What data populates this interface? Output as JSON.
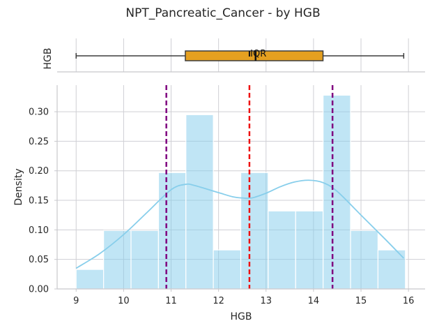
{
  "chart_data": [
    {
      "type": "box",
      "title": "NPT_Pancreatic_Cancer - by HGB",
      "ylabel": "HGB",
      "annotation": "IQR",
      "min": 9.0,
      "q1": 11.3,
      "median": 12.78,
      "q3": 14.2,
      "max": 15.9,
      "mean": 12.65,
      "box_color": "#E5A020",
      "xlim": [
        8.6,
        16.35
      ]
    },
    {
      "type": "bar",
      "subtype": "histogram",
      "xlabel": "HGB",
      "ylabel": "Density",
      "xlim": [
        8.6,
        16.35
      ],
      "ylim": [
        0,
        0.345
      ],
      "xticks": [
        "9",
        "10",
        "11",
        "12",
        "13",
        "14",
        "15",
        "16"
      ],
      "yticks": [
        "0.00",
        "0.05",
        "0.10",
        "0.15",
        "0.20",
        "0.25",
        "0.30"
      ],
      "bins": [
        {
          "x0": 9.0,
          "x1": 9.578,
          "density": 0.033
        },
        {
          "x0": 9.578,
          "x1": 10.156,
          "density": 0.099
        },
        {
          "x0": 10.156,
          "x1": 10.734,
          "density": 0.099
        },
        {
          "x0": 10.734,
          "x1": 11.312,
          "density": 0.197
        },
        {
          "x0": 11.312,
          "x1": 11.89,
          "density": 0.295
        },
        {
          "x0": 11.89,
          "x1": 12.468,
          "density": 0.066
        },
        {
          "x0": 12.468,
          "x1": 13.046,
          "density": 0.197
        },
        {
          "x0": 13.046,
          "x1": 13.624,
          "density": 0.132
        },
        {
          "x0": 13.624,
          "x1": 14.202,
          "density": 0.132
        },
        {
          "x0": 14.202,
          "x1": 14.78,
          "density": 0.328
        },
        {
          "x0": 14.78,
          "x1": 15.358,
          "density": 0.099
        },
        {
          "x0": 15.358,
          "x1": 15.936,
          "density": 0.066
        }
      ],
      "kde": {
        "x": [
          9.0,
          9.5,
          10.0,
          10.5,
          11.0,
          11.3,
          11.5,
          12.0,
          12.3,
          12.5,
          12.7,
          13.0,
          13.3,
          13.6,
          13.9,
          14.2,
          14.5,
          15.0,
          15.5,
          15.9
        ],
        "y": [
          0.035,
          0.06,
          0.092,
          0.13,
          0.168,
          0.177,
          0.175,
          0.163,
          0.156,
          0.154,
          0.154,
          0.162,
          0.173,
          0.181,
          0.184,
          0.18,
          0.165,
          0.125,
          0.085,
          0.052
        ]
      },
      "reference_lines": [
        {
          "x": 10.9,
          "color": "#800080"
        },
        {
          "x": 12.65,
          "color": "#EE1111"
        },
        {
          "x": 14.4,
          "color": "#800080"
        }
      ],
      "bar_color": "#87CEEB",
      "kde_color": "#87CEEB",
      "grid": true
    }
  ]
}
